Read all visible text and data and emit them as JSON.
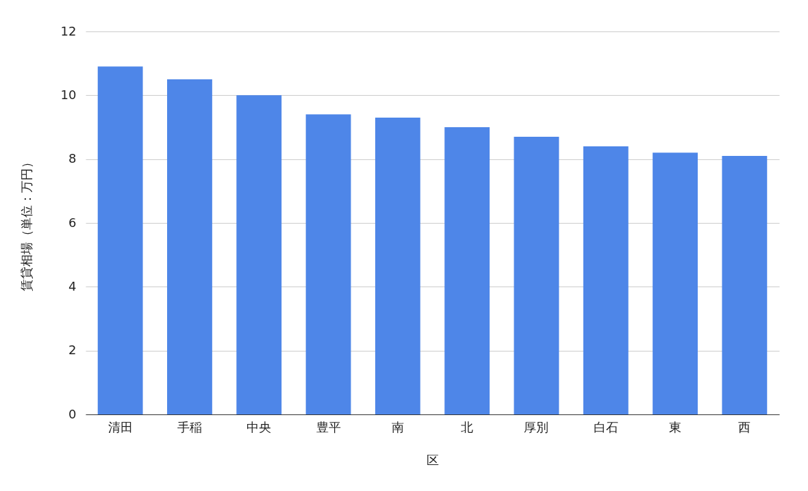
{
  "chart_data": {
    "type": "bar",
    "xlabel": "区",
    "ylabel": "賃貸相場（単位：万円）",
    "categories": [
      "清田",
      "手稲",
      "中央",
      "豊平",
      "南",
      "北",
      "厚別",
      "白石",
      "東",
      "西"
    ],
    "values": [
      10.9,
      10.5,
      10.0,
      9.4,
      9.3,
      9.0,
      8.7,
      8.4,
      8.2,
      8.1
    ],
    "color": "#4e86e8",
    "ylim": [
      0,
      12
    ],
    "yticks": [
      0,
      2,
      4,
      6,
      8,
      10,
      12
    ],
    "grid": "y"
  }
}
